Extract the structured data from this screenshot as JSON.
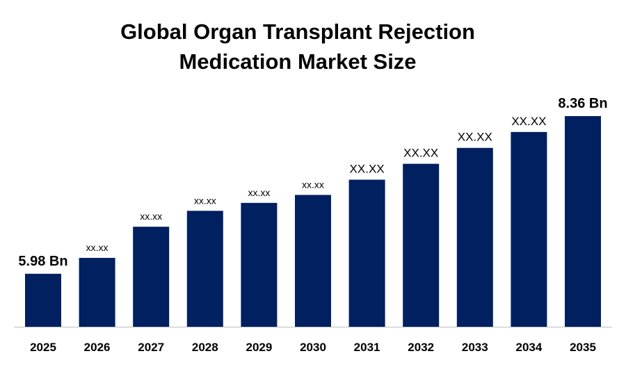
{
  "chart_data": {
    "type": "bar",
    "title": [
      "Global Organ Transplant Rejection",
      "Medication Market Size"
    ],
    "categories": [
      "2025",
      "2026",
      "2027",
      "2028",
      "2029",
      "2030",
      "2031",
      "2032",
      "2033",
      "2034",
      "2035"
    ],
    "values": [
      5.98,
      6.22,
      6.69,
      6.93,
      7.05,
      7.17,
      7.4,
      7.64,
      7.88,
      8.12,
      8.36
    ],
    "data_labels": [
      "5.98 Bn",
      "xx.xx",
      "xx.xx",
      "xx.xx",
      "xx.xx",
      "xx.xx",
      "XX.XX",
      "XX.XX",
      "XX.XX",
      "XX.XX",
      "8.36 Bn"
    ],
    "xlabel": "",
    "ylabel": "",
    "ylim": [
      5.18,
      8.5
    ],
    "grid": false,
    "bar_color": "#002060",
    "axis_color": "#bfbfbf"
  }
}
